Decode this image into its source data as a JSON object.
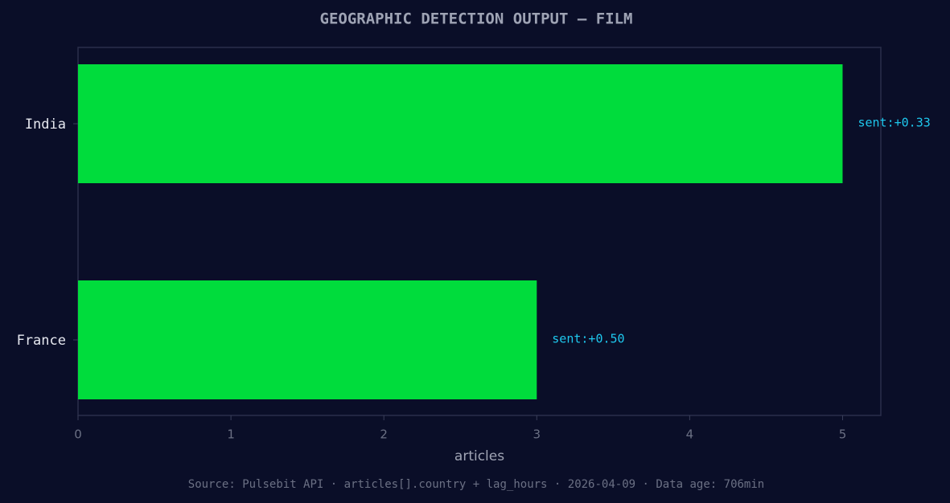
{
  "chart_data": {
    "type": "barh",
    "title": "GEOGRAPHIC DETECTION OUTPUT — FILM",
    "categories": [
      "India",
      "France"
    ],
    "values": [
      5,
      3
    ],
    "bar_annotations": [
      "sent:+0.33",
      "sent:+0.50"
    ],
    "color": "#00dc3c",
    "xlabel": "articles",
    "xlim": [
      0,
      5.25
    ],
    "xticks": [
      0,
      1,
      2,
      3,
      4,
      5
    ],
    "footer": "Source: Pulsebit API · articles[].country + lag_hours · 2026-04-09 · Data age: 706min"
  }
}
